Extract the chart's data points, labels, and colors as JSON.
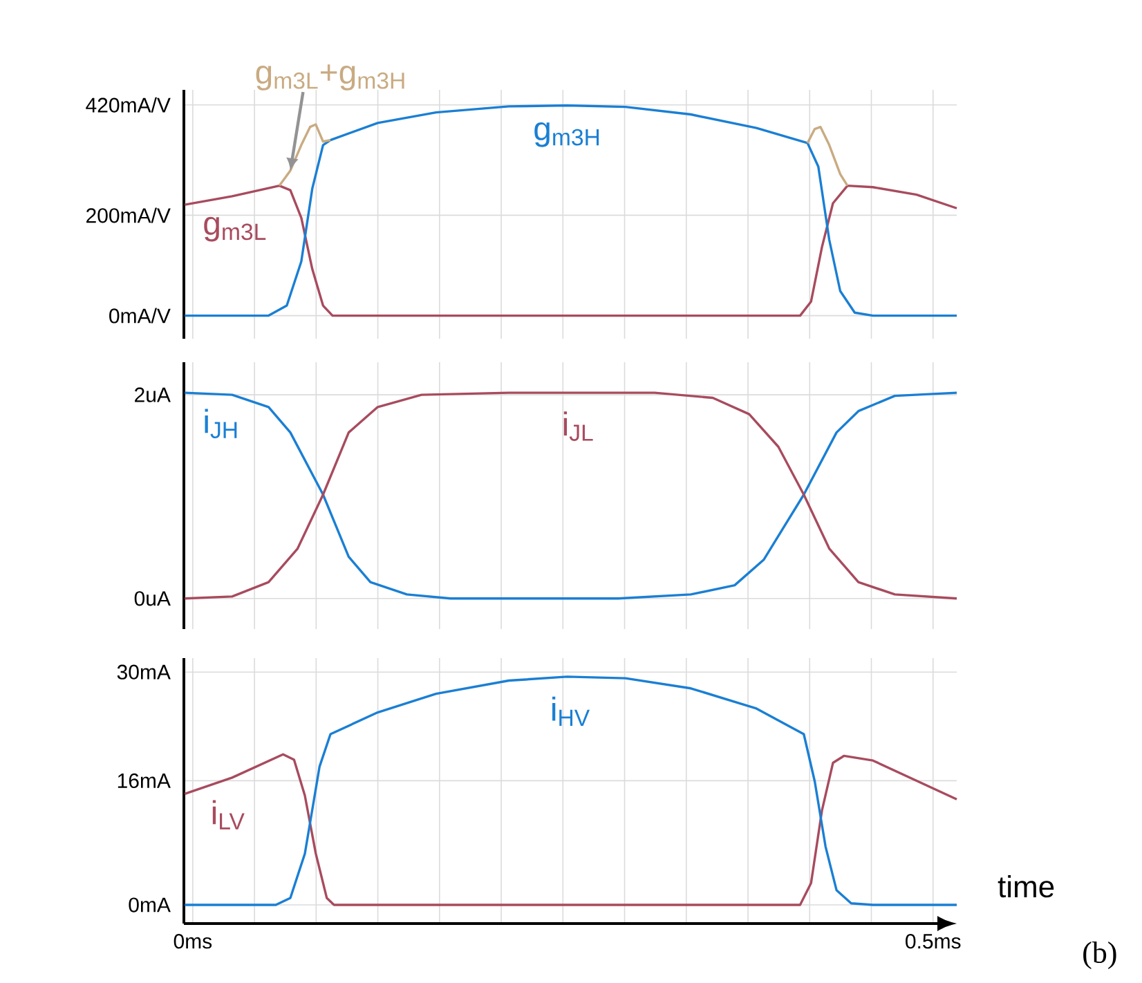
{
  "chart_data": [
    {
      "type": "line",
      "grid": true,
      "tick_labels": "y",
      "xlim": [
        -0.006,
        0.516
      ],
      "ylim": [
        -46,
        450
      ],
      "yticks": [
        {
          "value": 0,
          "label": "0mA/V"
        },
        {
          "value": 200,
          "label": "200mA/V"
        },
        {
          "value": 420,
          "label": "420mA/V"
        }
      ],
      "series": [
        {
          "name": "g$_{m3L}$",
          "color": "#a84b5e",
          "x": [
            -0.0054,
            0.0266,
            0.0585,
            0.0659,
            0.0733,
            0.0807,
            0.088,
            0.0944,
            0.4102,
            0.4176,
            0.425,
            0.4324,
            0.4422,
            0.4594,
            0.4889,
            0.516
          ],
          "values": [
            221,
            238,
            259,
            250,
            195,
            93,
            20,
            0,
            0,
            28,
            137,
            224,
            259,
            256,
            241,
            214
          ]
        },
        {
          "name": "g$_{m3H}$",
          "color": "#1a7fd4",
          "x": [
            -0.0054,
            0.0512,
            0.0635,
            0.0733,
            0.0807,
            0.088,
            0.093,
            0.1249,
            0.1643,
            0.2135,
            0.2528,
            0.2922,
            0.3364,
            0.3807,
            0.4152,
            0.4225,
            0.4299,
            0.4373,
            0.4471,
            0.4594,
            0.516
          ],
          "values": [
            0,
            0,
            20,
            108,
            253,
            340,
            350,
            384,
            405,
            417,
            419,
            416,
            401,
            374,
            344,
            297,
            151,
            49,
            6,
            0,
            0
          ]
        },
        {
          "name": "g$_{m3L}$+g$_{m3H}$",
          "color": "#c9ab82",
          "x": [
            0.0585,
            0.0659,
            0.0733,
            0.0792,
            0.0831,
            0.088,
            0.093,
            0.25,
            0.4152,
            0.4201,
            0.424,
            0.4299,
            0.4373,
            0.4422
          ],
          "values": [
            259,
            289,
            340,
            376,
            381,
            347,
            350,
            null,
            344,
            372,
            376,
            340,
            282,
            259
          ]
        }
      ]
    },
    {
      "type": "line",
      "grid": true,
      "tick_labels": "y",
      "xlim": [
        -0.006,
        0.516
      ],
      "ylim": [
        -0.3,
        2.32
      ],
      "yticks": [
        {
          "value": 0,
          "label": "0uA"
        },
        {
          "value": 2,
          "label": "2uA"
        }
      ],
      "series": [
        {
          "name": "i$_{JH}$",
          "color": "#1a7fd4",
          "x": [
            -0.0054,
            0.0266,
            0.0512,
            0.0659,
            0.088,
            0.1053,
            0.12,
            0.1446,
            0.1741,
            0.2135,
            0.2873,
            0.3364,
            0.366,
            0.3856,
            0.4127,
            0.4348,
            0.4496,
            0.4742,
            0.516
          ],
          "values": [
            2.02,
            2.0,
            1.88,
            1.63,
            1.02,
            0.41,
            0.16,
            0.04,
            0,
            0,
            0,
            0.04,
            0.13,
            0.38,
            1.02,
            1.63,
            1.84,
            1.99,
            2.02
          ]
        },
        {
          "name": "i$_{JL}$",
          "color": "#a84b5e",
          "x": [
            -0.0054,
            0.0266,
            0.0512,
            0.0708,
            0.088,
            0.1053,
            0.1249,
            0.1545,
            0.2135,
            0.3119,
            0.3512,
            0.3758,
            0.3955,
            0.4127,
            0.4299,
            0.4496,
            0.4742,
            0.516
          ],
          "values": [
            0,
            0.02,
            0.16,
            0.49,
            1.02,
            1.63,
            1.88,
            2.0,
            2.02,
            2.02,
            1.97,
            1.81,
            1.49,
            1.02,
            0.49,
            0.16,
            0.04,
            0
          ]
        }
      ]
    },
    {
      "type": "line",
      "grid": true,
      "xlabel": "time",
      "annotations": [
        "(b)"
      ],
      "xlim": [
        -0.006,
        0.516
      ],
      "ylim": [
        -2.4,
        31.8
      ],
      "xticks": [
        {
          "value": 0,
          "label": "0ms"
        },
        {
          "value": 0.5,
          "label": "0.5ms"
        }
      ],
      "yticks": [
        {
          "value": 0,
          "label": "0mA"
        },
        {
          "value": 16,
          "label": "16mA"
        },
        {
          "value": 30,
          "label": "30mA"
        }
      ],
      "series": [
        {
          "name": "i$_{LV}$",
          "color": "#a84b5e",
          "x": [
            -0.0054,
            0.0266,
            0.061,
            0.0684,
            0.0757,
            0.0831,
            0.0905,
            0.0954,
            0.4102,
            0.4176,
            0.425,
            0.4324,
            0.4398,
            0.4594,
            0.516
          ],
          "values": [
            14.3,
            16.4,
            19.4,
            18.7,
            14.1,
            6.6,
            0.9,
            0,
            0,
            2.8,
            12.2,
            18.3,
            19.2,
            18.6,
            13.6
          ]
        },
        {
          "name": "i$_{HV}$",
          "color": "#1a7fd4",
          "x": [
            -0.0054,
            0.0561,
            0.0659,
            0.0757,
            0.0856,
            0.093,
            0.1249,
            0.1643,
            0.2135,
            0.2528,
            0.2922,
            0.3364,
            0.3807,
            0.4127,
            0.4201,
            0.4274,
            0.4348,
            0.4447,
            0.4594,
            0.516
          ],
          "values": [
            0,
            0,
            0.9,
            6.6,
            17.8,
            22.0,
            24.8,
            27.2,
            28.9,
            29.4,
            29.2,
            27.9,
            25.3,
            22.0,
            15.9,
            7.5,
            1.9,
            0.2,
            0,
            0
          ]
        }
      ]
    }
  ]
}
